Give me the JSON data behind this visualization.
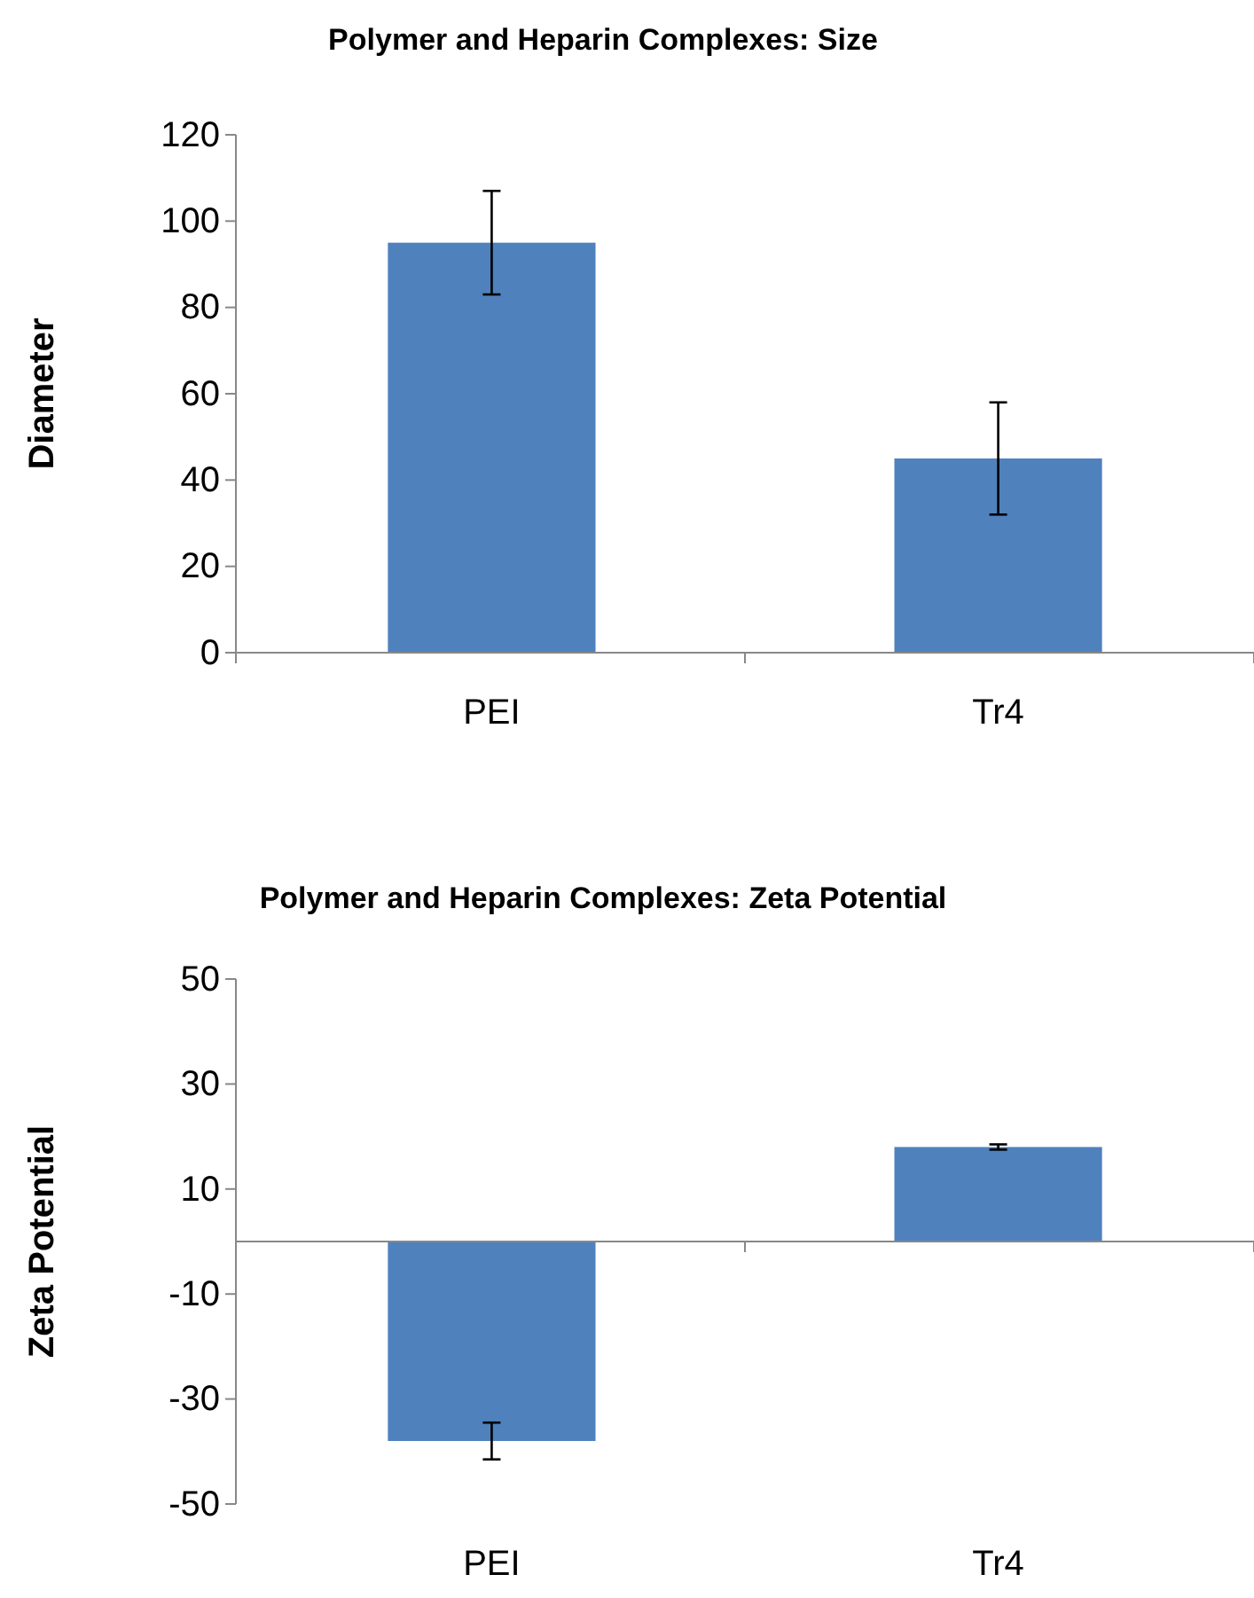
{
  "chart_data": [
    {
      "type": "bar",
      "title": "Polymer and Heparin Complexes: Size",
      "ylabel": "Diameter",
      "categories": [
        "PEI",
        "Tr4"
      ],
      "values": [
        95,
        45
      ],
      "errors": [
        12,
        13
      ],
      "color": "#4f81bd",
      "ylim": [
        0,
        120
      ],
      "yticks": [
        0,
        20,
        40,
        60,
        80,
        100,
        120
      ]
    },
    {
      "type": "bar",
      "title": "Polymer and Heparin Complexes: Zeta Potential",
      "ylabel": "Zeta Potential",
      "categories": [
        "PEI",
        "Tr4"
      ],
      "values": [
        -38,
        18
      ],
      "errors": [
        3.5,
        0.5
      ],
      "color": "#4f81bd",
      "ylim": [
        -50,
        50
      ],
      "yticks": [
        -50,
        -30,
        -10,
        10,
        30,
        50
      ]
    }
  ]
}
